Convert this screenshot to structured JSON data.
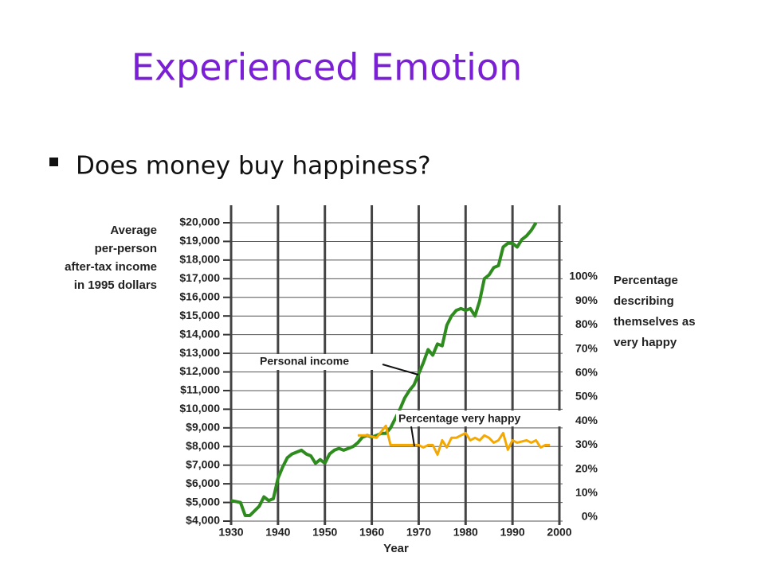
{
  "header": {
    "title": "Experienced Emotion",
    "bullet": "Does money buy happiness?"
  },
  "chart_data": {
    "type": "line",
    "ylabel": [
      "Average",
      "per-person",
      "after-tax income",
      "in 1995 dollars"
    ],
    "y2label": [
      "Percentage",
      "describing",
      "themselves as",
      "very happy"
    ],
    "xlabel": "Year",
    "xlim": [
      1930,
      2000
    ],
    "xticks": [
      1930,
      1940,
      1950,
      1960,
      1970,
      1980,
      1990,
      2000
    ],
    "ylim": [
      4000,
      20000
    ],
    "yticks": [
      {
        "value": 4000,
        "label": "$4,000"
      },
      {
        "value": 5000,
        "label": "$5,000"
      },
      {
        "value": 6000,
        "label": "$6,000"
      },
      {
        "value": 7000,
        "label": "$7,000"
      },
      {
        "value": 8000,
        "label": "$8,000"
      },
      {
        "value": 9000,
        "label": "$9,000"
      },
      {
        "value": 10000,
        "label": "$10,000"
      },
      {
        "value": 11000,
        "label": "$11,000"
      },
      {
        "value": 12000,
        "label": "$12,000"
      },
      {
        "value": 13000,
        "label": "$13,000"
      },
      {
        "value": 14000,
        "label": "$14,000"
      },
      {
        "value": 15000,
        "label": "$15,000"
      },
      {
        "value": 16000,
        "label": "$16,000"
      },
      {
        "value": 17000,
        "label": "$17,000"
      },
      {
        "value": 18000,
        "label": "$18,000"
      },
      {
        "value": 19000,
        "label": "$19,000"
      },
      {
        "value": 20000,
        "label": "$20,000"
      }
    ],
    "y2lim": [
      0,
      100
    ],
    "y2ticks": [
      {
        "value": 0,
        "label": "0%"
      },
      {
        "value": 10,
        "label": "10%"
      },
      {
        "value": 20,
        "label": "20%"
      },
      {
        "value": 30,
        "label": "30%"
      },
      {
        "value": 40,
        "label": "40%"
      },
      {
        "value": 50,
        "label": "50%"
      },
      {
        "value": 60,
        "label": "60%"
      },
      {
        "value": 70,
        "label": "70%"
      },
      {
        "value": 80,
        "label": "80%"
      },
      {
        "value": 90,
        "label": "90%"
      },
      {
        "value": 100,
        "label": "100%"
      }
    ],
    "grid": true,
    "series": [
      {
        "name": "Personal income",
        "color": "#2e8b1e",
        "x": [
          1930,
          1932,
          1933,
          1934,
          1936,
          1937,
          1938,
          1939,
          1940,
          1941,
          1942,
          1943,
          1944,
          1945,
          1946,
          1947,
          1948,
          1949,
          1950,
          1951,
          1952,
          1953,
          1954,
          1955,
          1956,
          1957,
          1958,
          1959,
          1960,
          1961,
          1962,
          1963,
          1964,
          1965,
          1966,
          1967,
          1968,
          1969,
          1970,
          1971,
          1972,
          1973,
          1974,
          1975,
          1976,
          1977,
          1978,
          1979,
          1980,
          1981,
          1982,
          1983,
          1984,
          1985,
          1986,
          1987,
          1988,
          1989,
          1990,
          1991,
          1992,
          1993,
          1994,
          1995
        ],
        "values": [
          5100,
          5000,
          4300,
          4300,
          4800,
          5300,
          5100,
          5200,
          6300,
          6900,
          7400,
          7600,
          7700,
          7800,
          7600,
          7500,
          7100,
          7300,
          7100,
          7600,
          7800,
          7900,
          7800,
          7900,
          8000,
          8200,
          8500,
          8600,
          8500,
          8600,
          8700,
          8700,
          9000,
          9500,
          10000,
          10600,
          11000,
          11300,
          11900,
          12500,
          13200,
          12900,
          13500,
          13400,
          14500,
          15000,
          15300,
          15400,
          15300,
          15400,
          15000,
          15800,
          17000,
          17200,
          17600,
          17700,
          18700,
          18900,
          18900,
          18700,
          19100,
          19300,
          19600,
          20000
        ]
      },
      {
        "name": "Percentage very happy",
        "color": "#f5a800",
        "axis": "y2",
        "x": [
          1957,
          1959,
          1961,
          1963,
          1964,
          1966,
          1970,
          1971,
          1972,
          1973,
          1974,
          1975,
          1976,
          1977,
          1978,
          1980,
          1981,
          1982,
          1983,
          1984,
          1985,
          1986,
          1987,
          1988,
          1989,
          1990,
          1991,
          1993,
          1994,
          1995,
          1996,
          1997,
          1998
        ],
        "values": [
          34,
          34,
          33,
          38,
          30,
          30,
          30,
          29,
          30,
          30,
          26,
          32,
          29,
          33,
          33,
          35,
          32,
          33,
          32,
          34,
          33,
          31,
          32,
          35,
          28,
          32,
          31,
          32,
          31,
          32,
          29,
          30,
          30
        ]
      }
    ]
  }
}
